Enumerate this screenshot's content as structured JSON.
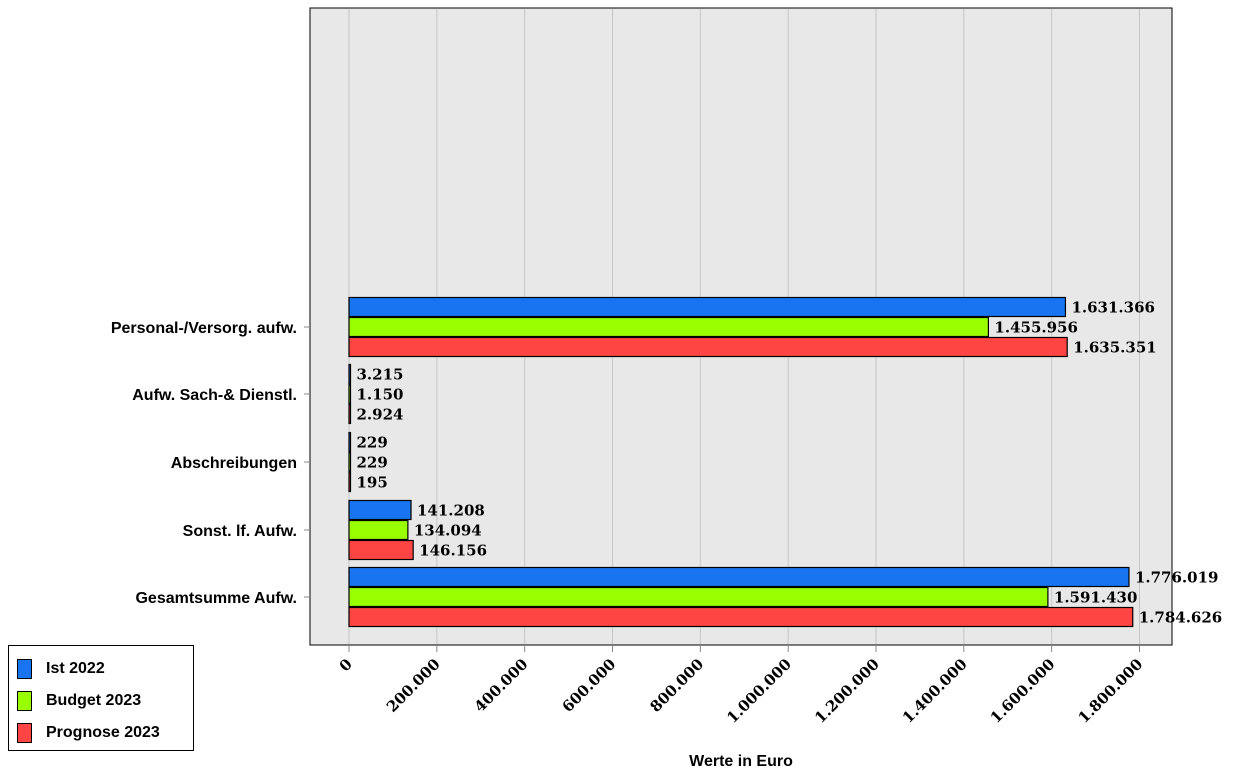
{
  "chart_data": {
    "type": "bar",
    "orientation": "horizontal",
    "categories": [
      "Personal-/Versorg. aufw.",
      "Aufw. Sach-& Dienstl.",
      "Abschreibungen",
      "Sonst. lf. Aufw.",
      "Gesamtsumme Aufw."
    ],
    "series": [
      {
        "name": "Ist 2022",
        "color": "#1874f0",
        "values": [
          1631366,
          3215,
          229,
          141208,
          1776019
        ],
        "labels": [
          "1.631.366",
          "3.215",
          "229",
          "141.208",
          "1.776.019"
        ]
      },
      {
        "name": "Budget 2023",
        "color": "#99ff00",
        "values": [
          1455956,
          1150,
          229,
          134094,
          1591430
        ],
        "labels": [
          "1.455.956",
          "1.150",
          "229",
          "134.094",
          "1.591.430"
        ]
      },
      {
        "name": "Prognose 2023",
        "color": "#ff4444",
        "values": [
          1635351,
          2924,
          195,
          146156,
          1784626
        ],
        "labels": [
          "1.635.351",
          "2.924",
          "195",
          "146.156",
          "1.784.626"
        ]
      }
    ],
    "xlim": [
      0,
      1880000
    ],
    "xticks": [
      0,
      200000,
      400000,
      600000,
      800000,
      1000000,
      1200000,
      1400000,
      1600000,
      1800000
    ],
    "xtick_labels": [
      "0",
      "200.000",
      "400.000",
      "600.000",
      "800.000",
      "1.000.000",
      "1.200.000",
      "1.400.000",
      "1.600.000",
      "1.800.000"
    ],
    "xlabel": "Werte in Euro",
    "grid": "vertical",
    "legend_position": "bottom-left",
    "plot_background": "#e8e8e8"
  }
}
